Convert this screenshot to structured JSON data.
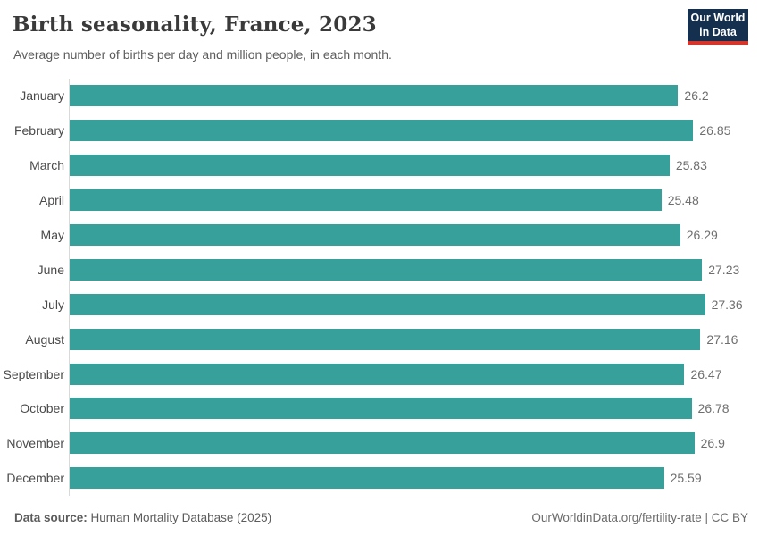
{
  "header": {
    "title": "Birth seasonality, France, 2023",
    "subtitle": "Average number of births per day and million people, in each month.",
    "logo": {
      "line1": "Our World",
      "line2": "in Data"
    }
  },
  "chart_data": {
    "type": "bar",
    "orientation": "horizontal",
    "title": "Birth seasonality, France, 2023",
    "xlabel": "",
    "ylabel": "",
    "categories": [
      "January",
      "February",
      "March",
      "April",
      "May",
      "June",
      "July",
      "August",
      "September",
      "October",
      "November",
      "December"
    ],
    "values": [
      26.2,
      26.85,
      25.83,
      25.48,
      26.29,
      27.23,
      27.36,
      27.16,
      26.47,
      26.78,
      26.9,
      25.59
    ],
    "value_labels": [
      "26.2",
      "26.85",
      "25.83",
      "25.48",
      "26.29",
      "27.23",
      "27.36",
      "27.16",
      "26.47",
      "26.78",
      "26.9",
      "25.59"
    ],
    "xlim": [
      0,
      29.22
    ],
    "grid": false,
    "legend": "none"
  },
  "footer": {
    "source_label": "Data source:",
    "source_value": "Human Mortality Database (2025)",
    "credit": "OurWorldinData.org/fertility-rate | CC BY"
  },
  "colors": {
    "bar": "#38a09a",
    "logo_bg": "#15304e",
    "logo_accent": "#d5352b",
    "axis_line": "#d9d9d9",
    "title_text": "#3a3a3a",
    "subtitle_text": "#5c5c5c"
  }
}
